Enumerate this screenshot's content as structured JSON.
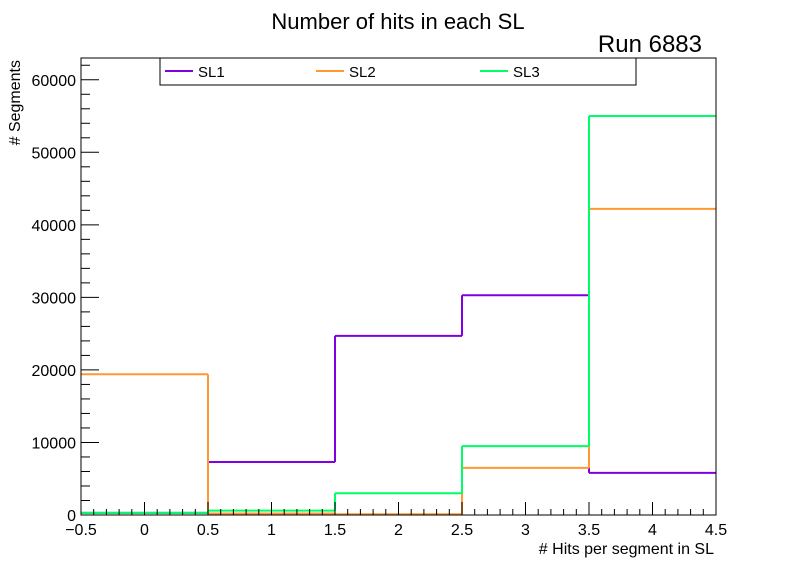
{
  "chart_data": {
    "type": "histogram-step",
    "title": "Number of hits in each SL",
    "annotation": "Run 6883",
    "xlabel": "# Hits per segment in SL",
    "ylabel": "# Segments",
    "xlim": [
      -0.5,
      4.5
    ],
    "ylim": [
      0,
      63000
    ],
    "xticks": [
      -0.5,
      0,
      0.5,
      1,
      1.5,
      2,
      2.5,
      3,
      3.5,
      4,
      4.5
    ],
    "xtick_labels": [
      "−0.5",
      "0",
      "0.5",
      "1",
      "1.5",
      "2",
      "2.5",
      "3",
      "3.5",
      "4",
      "4.5"
    ],
    "yticks": [
      0,
      10000,
      20000,
      30000,
      40000,
      50000,
      60000
    ],
    "ytick_labels": [
      "0",
      "10000",
      "20000",
      "30000",
      "40000",
      "50000",
      "60000"
    ],
    "bin_edges": [
      -0.5,
      0.5,
      1.5,
      2.5,
      3.5,
      4.5
    ],
    "legend_position": "top",
    "series": [
      {
        "name": "SL1",
        "color": "#8000e0",
        "values": [
          300,
          7300,
          24700,
          30300,
          5800
        ]
      },
      {
        "name": "SL2",
        "color": "#ff9933",
        "values": [
          19400,
          200,
          100,
          6500,
          42200
        ]
      },
      {
        "name": "SL3",
        "color": "#00ff66",
        "values": [
          300,
          600,
          3000,
          9500,
          55000
        ]
      }
    ]
  }
}
